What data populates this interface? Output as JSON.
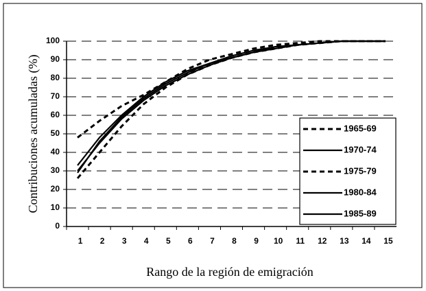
{
  "chart_data": {
    "type": "line",
    "x_label": "Rango de la región de emigración",
    "y_label": "Contribuciones acumuladas (%)",
    "categories": [
      "1",
      "2",
      "3",
      "4",
      "5",
      "6",
      "7",
      "8",
      "9",
      "10",
      "11",
      "12",
      "13",
      "14",
      "15"
    ],
    "series": [
      {
        "name": "1965-69",
        "color": "#000000",
        "dashed": true,
        "values": [
          48,
          57,
          65,
          71,
          78,
          85,
          90,
          93,
          96,
          98,
          99,
          100,
          100,
          100,
          100
        ]
      },
      {
        "name": "1970-74",
        "color": "#000000",
        "dashed": false,
        "values": [
          30,
          45,
          58,
          68,
          76,
          82,
          87,
          91,
          94,
          96,
          98,
          99,
          100,
          100,
          100
        ]
      },
      {
        "name": "1975-79",
        "color": "#000000",
        "dashed": true,
        "values": [
          26,
          40,
          54,
          66,
          75,
          82,
          87,
          91,
          94,
          96,
          98,
          99,
          100,
          100,
          100
        ]
      },
      {
        "name": "1980-84",
        "color": "#000000",
        "dashed": false,
        "values": [
          33,
          48,
          60,
          70,
          78,
          84,
          88,
          92,
          95,
          97,
          98,
          99,
          100,
          100,
          100
        ]
      },
      {
        "name": "1985-89",
        "color": "#000000",
        "dashed": false,
        "values": [
          29,
          46,
          59,
          69,
          77,
          83,
          88,
          91,
          94,
          97,
          98,
          99,
          100,
          100,
          100
        ]
      }
    ],
    "ylim": [
      0,
      100
    ],
    "yticks": [
      0,
      10,
      20,
      30,
      40,
      50,
      60,
      70,
      80,
      90,
      100
    ],
    "grid": true,
    "legend": "right"
  }
}
